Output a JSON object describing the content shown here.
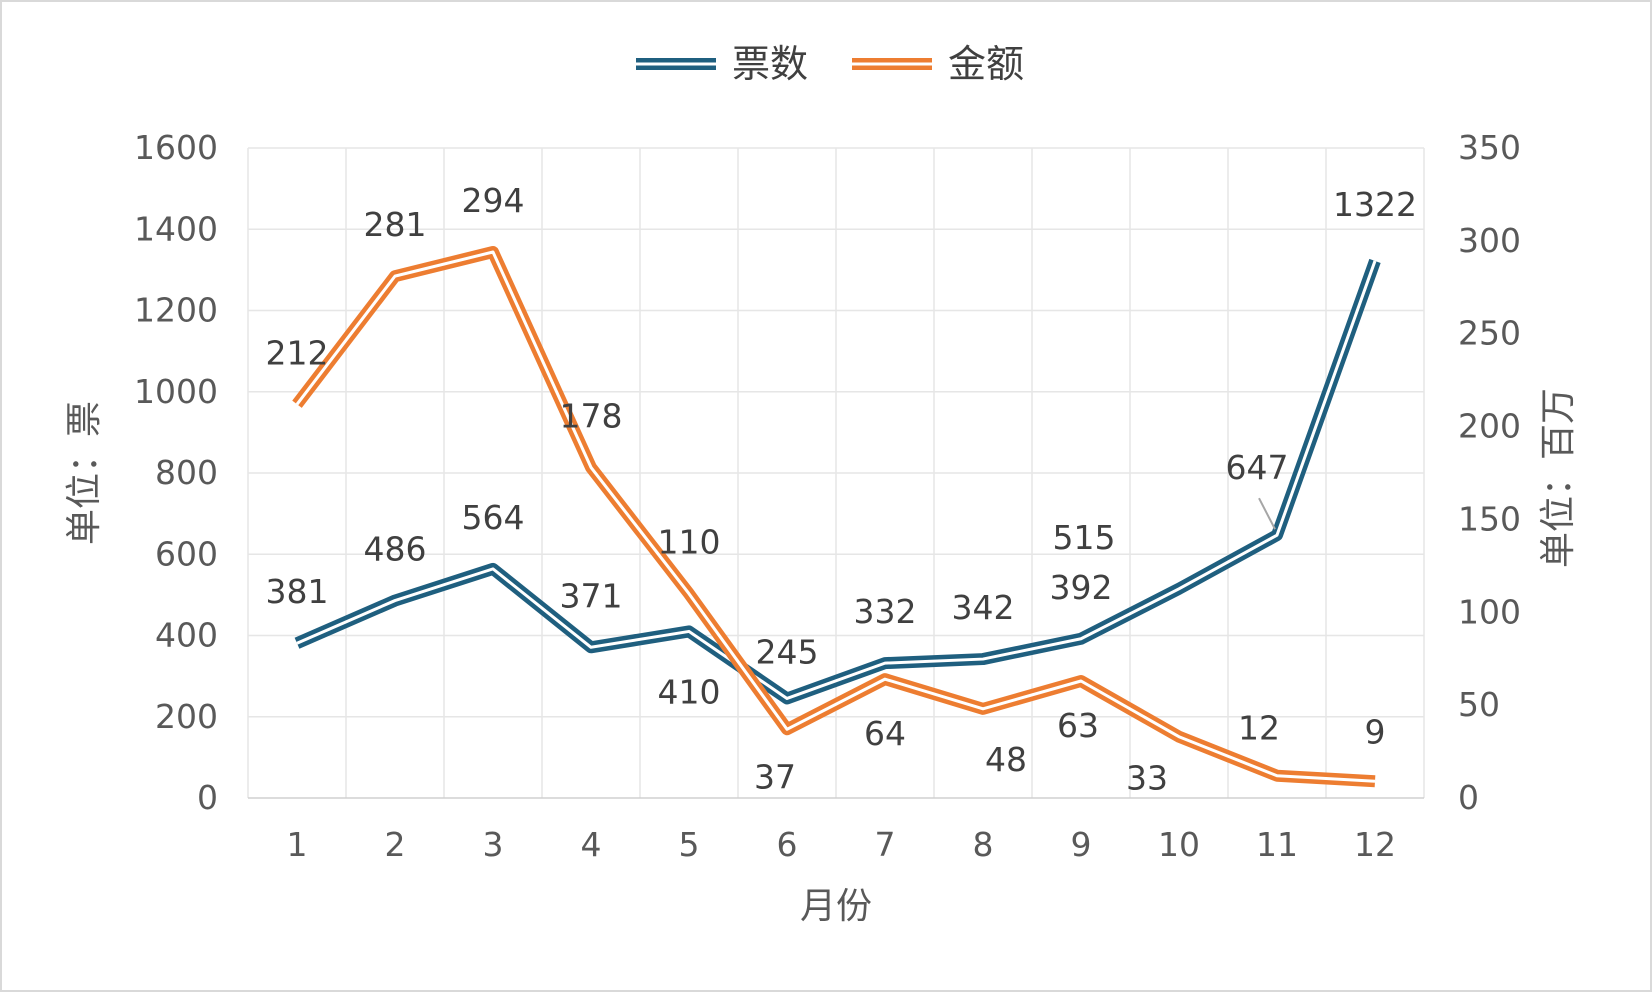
{
  "chart_data": {
    "type": "line",
    "categories": [
      "1",
      "2",
      "3",
      "4",
      "5",
      "6",
      "7",
      "8",
      "9",
      "10",
      "11",
      "12"
    ],
    "xlabel": "月份",
    "ylabel_left": "单位：票",
    "ylabel_right": "单位：百万",
    "ylim_left": [
      0,
      1600
    ],
    "ylim_right": [
      0,
      350
    ],
    "yticks_left": [
      "0",
      "200",
      "400",
      "600",
      "800",
      "1000",
      "1200",
      "1400",
      "1600"
    ],
    "yticks_right": [
      "0",
      "50",
      "100",
      "150",
      "200",
      "250",
      "300",
      "350"
    ],
    "grid": true,
    "legend_position": "top",
    "series": [
      {
        "name": "票数",
        "axis": "left",
        "color": "#1f5f7f",
        "values": [
          381,
          486,
          564,
          371,
          410,
          245,
          332,
          342,
          392,
          515,
          647,
          1322
        ],
        "labels": [
          "381",
          "486",
          "564",
          "371",
          "410",
          "245",
          "332",
          "342",
          "392",
          "515",
          "647",
          "1322"
        ]
      },
      {
        "name": "金额",
        "axis": "right",
        "color": "#ed7d31",
        "values": [
          212,
          281,
          294,
          178,
          110,
          37,
          64,
          48,
          63,
          33,
          12,
          9
        ],
        "labels": [
          "212",
          "281",
          "294",
          "178",
          "110",
          "37",
          "64",
          "48",
          "63",
          "33",
          "12",
          "9"
        ]
      }
    ]
  }
}
